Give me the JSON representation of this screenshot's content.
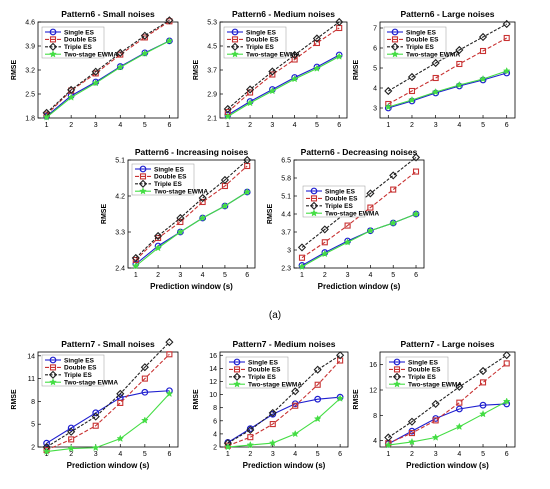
{
  "figure_caption": "(a)",
  "series_styles": [
    {
      "color": "#1f1fd0",
      "marker": "circle",
      "dash": ""
    },
    {
      "color": "#c83232",
      "marker": "square",
      "dash": "4,2"
    },
    {
      "color": "#222222",
      "marker": "diamond",
      "dash": "3,1.5"
    },
    {
      "color": "#44dd44",
      "marker": "star",
      "dash": ""
    }
  ],
  "chart_data": [
    {
      "type": "line",
      "title": "Pattern6 - Small noises",
      "xlabel": "",
      "ylabel": "RMSE",
      "x": [
        1,
        2,
        3,
        4,
        5,
        6
      ],
      "ylim": [
        1.8,
        4.6
      ],
      "yticks": [
        1.8,
        2.5,
        3.2,
        3.9,
        4.6
      ],
      "series": [
        {
          "name": "Single ES",
          "values": [
            1.85,
            2.45,
            2.85,
            3.3,
            3.7,
            4.05
          ]
        },
        {
          "name": "Double ES",
          "values": [
            1.9,
            2.6,
            3.1,
            3.65,
            4.15,
            4.62
          ]
        },
        {
          "name": "Triple ES",
          "values": [
            1.95,
            2.62,
            3.15,
            3.7,
            4.2,
            4.65
          ]
        },
        {
          "name": "Two-stage EWMA",
          "values": [
            1.82,
            2.4,
            2.82,
            3.28,
            3.68,
            4.05
          ]
        }
      ]
    },
    {
      "type": "line",
      "title": "Pattern6 - Medium noises",
      "xlabel": "",
      "ylabel": "RMSE",
      "x": [
        1,
        2,
        3,
        4,
        5,
        6
      ],
      "ylim": [
        2.1,
        5.3
      ],
      "yticks": [
        2.1,
        2.9,
        3.7,
        4.5,
        5.3
      ],
      "series": [
        {
          "name": "Single ES",
          "values": [
            2.2,
            2.65,
            3.05,
            3.45,
            3.8,
            4.2
          ]
        },
        {
          "name": "Double ES",
          "values": [
            2.3,
            2.95,
            3.55,
            4.05,
            4.6,
            5.1
          ]
        },
        {
          "name": "Triple ES",
          "values": [
            2.4,
            3.05,
            3.65,
            4.2,
            4.75,
            5.3
          ]
        },
        {
          "name": "Two-stage EWMA",
          "values": [
            2.15,
            2.6,
            3.0,
            3.4,
            3.75,
            4.15
          ]
        }
      ]
    },
    {
      "type": "line",
      "title": "Pattern6 - Large noises",
      "xlabel": "",
      "ylabel": "RMSE",
      "x": [
        1,
        2,
        3,
        4,
        5,
        6
      ],
      "ylim": [
        2.5,
        7.3
      ],
      "yticks": [
        3,
        4,
        5,
        6,
        7
      ],
      "series": [
        {
          "name": "Single ES",
          "values": [
            3.0,
            3.35,
            3.75,
            4.1,
            4.4,
            4.75
          ]
        },
        {
          "name": "Double ES",
          "values": [
            3.2,
            3.85,
            4.5,
            5.2,
            5.85,
            6.5
          ]
        },
        {
          "name": "Triple ES",
          "values": [
            3.85,
            4.55,
            5.25,
            5.9,
            6.55,
            7.2
          ]
        },
        {
          "name": "Two-stage EWMA",
          "values": [
            3.05,
            3.4,
            3.8,
            4.15,
            4.45,
            4.85
          ]
        }
      ]
    },
    {
      "type": "line",
      "title": "Pattern6 - Increasing noises",
      "xlabel": "Prediction window (s)",
      "ylabel": "RMSE",
      "x": [
        1,
        2,
        3,
        4,
        5,
        6
      ],
      "ylim": [
        2.4,
        5.1
      ],
      "yticks": [
        2.4,
        3.3,
        4.2,
        5.1
      ],
      "series": [
        {
          "name": "Single ES",
          "values": [
            2.5,
            2.95,
            3.3,
            3.65,
            3.95,
            4.3
          ]
        },
        {
          "name": "Double ES",
          "values": [
            2.6,
            3.15,
            3.55,
            4.05,
            4.45,
            4.95
          ]
        },
        {
          "name": "Triple ES",
          "values": [
            2.65,
            3.2,
            3.65,
            4.15,
            4.6,
            5.1
          ]
        },
        {
          "name": "Two-stage EWMA",
          "values": [
            2.45,
            2.9,
            3.3,
            3.65,
            3.95,
            4.3
          ]
        }
      ]
    },
    {
      "type": "line",
      "title": "Pattern6 - Decreasing noises",
      "xlabel": "Prediction window (s)",
      "ylabel": "RMSE",
      "x": [
        1,
        2,
        3,
        4,
        5,
        6
      ],
      "ylim": [
        2.3,
        6.5
      ],
      "yticks": [
        2.3,
        3,
        3.7,
        4.4,
        5.1,
        5.8,
        6.5
      ],
      "series": [
        {
          "name": "Single ES",
          "values": [
            2.4,
            2.9,
            3.35,
            3.75,
            4.05,
            4.4
          ]
        },
        {
          "name": "Double ES",
          "values": [
            2.7,
            3.3,
            3.95,
            4.65,
            5.35,
            6.05
          ]
        },
        {
          "name": "Triple ES",
          "values": [
            3.1,
            3.8,
            4.5,
            5.2,
            5.9,
            6.6
          ]
        },
        {
          "name": "Two-stage EWMA",
          "values": [
            2.35,
            2.85,
            3.3,
            3.75,
            4.05,
            4.4
          ]
        }
      ]
    },
    {
      "type": "line",
      "title": "Pattern7 - Small noises",
      "xlabel": "Prediction window (s)",
      "ylabel": "RMSE",
      "x": [
        1,
        2,
        3,
        4,
        5,
        6
      ],
      "ylim": [
        2,
        14.5
      ],
      "yticks": [
        2,
        5,
        8,
        11,
        14
      ],
      "series": [
        {
          "name": "Single ES",
          "values": [
            2.5,
            4.5,
            6.5,
            8.5,
            9.2,
            9.4
          ]
        },
        {
          "name": "Double ES",
          "values": [
            1.6,
            3.0,
            4.8,
            7.8,
            11.0,
            14.2
          ]
        },
        {
          "name": "Triple ES",
          "values": [
            2.0,
            4.0,
            6.0,
            9.0,
            12.5,
            15.8
          ]
        },
        {
          "name": "Two-stage EWMA",
          "values": [
            1.4,
            1.8,
            1.9,
            3.1,
            5.5,
            9.0
          ]
        }
      ]
    },
    {
      "type": "line",
      "title": "Pattern7 - Medium noises",
      "xlabel": "Prediction window (s)",
      "ylabel": "RMSE",
      "x": [
        1,
        2,
        3,
        4,
        5,
        6
      ],
      "ylim": [
        2,
        16.5
      ],
      "yticks": [
        2,
        4,
        6,
        8,
        10,
        12,
        14,
        16
      ],
      "series": [
        {
          "name": "Single ES",
          "values": [
            2.7,
            4.8,
            7.0,
            8.6,
            9.3,
            9.6
          ]
        },
        {
          "name": "Double ES",
          "values": [
            2.2,
            3.5,
            5.5,
            8.3,
            11.5,
            15.2
          ]
        },
        {
          "name": "Triple ES",
          "values": [
            2.6,
            4.6,
            7.2,
            10.5,
            13.8,
            16.0
          ]
        },
        {
          "name": "Two-stage EWMA",
          "values": [
            2.0,
            2.3,
            2.6,
            4.0,
            6.3,
            9.4
          ]
        }
      ]
    },
    {
      "type": "line",
      "title": "Pattern7 - Large noises",
      "xlabel": "Prediction window (s)",
      "ylabel": "RMSE",
      "x": [
        1,
        2,
        3,
        4,
        5,
        6
      ],
      "ylim": [
        3,
        18
      ],
      "yticks": [
        4,
        8,
        12,
        16
      ],
      "series": [
        {
          "name": "Single ES",
          "values": [
            3.5,
            5.5,
            7.5,
            9.0,
            9.6,
            9.8
          ]
        },
        {
          "name": "Double ES",
          "values": [
            3.6,
            5.2,
            7.2,
            10.0,
            13.2,
            16.2
          ]
        },
        {
          "name": "Triple ES",
          "values": [
            4.5,
            7.0,
            9.8,
            12.5,
            15.0,
            17.5
          ]
        },
        {
          "name": "Two-stage EWMA",
          "values": [
            3.3,
            3.8,
            4.5,
            6.2,
            8.2,
            10.2
          ]
        }
      ]
    }
  ]
}
